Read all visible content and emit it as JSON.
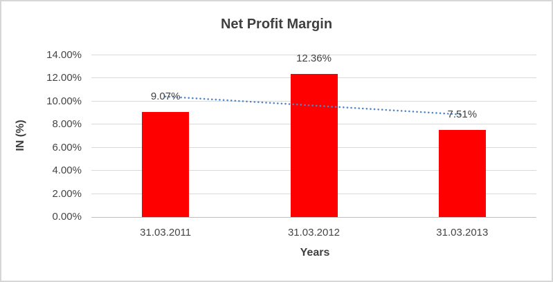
{
  "window": {
    "background": "#FFFFFF",
    "border_color": "#D6D6D6"
  },
  "chart_data": {
    "type": "bar",
    "title": "Net Profit Margin",
    "xlabel": "Years",
    "ylabel": "IN (%)",
    "categories": [
      "31.03.2011",
      "31.03.2012",
      "31.03.2013"
    ],
    "series": [
      {
        "name": "Net Profit Margin",
        "values": [
          9.07,
          12.36,
          7.51
        ],
        "data_labels": [
          "9.07%",
          "12.36%",
          "7.51%"
        ],
        "color": "#FF0000"
      }
    ],
    "ylim": [
      0,
      14
    ],
    "ytick_step": 2,
    "ytick_labels": [
      "0.00%",
      "2.00%",
      "4.00%",
      "6.00%",
      "8.00%",
      "10.00%",
      "12.00%",
      "14.00%"
    ],
    "grid": true,
    "legend": "none",
    "trendline": {
      "type": "linear",
      "style": "dotted",
      "color": "#4F86C6",
      "points": [
        {
          "x": "31.03.2011",
          "y": 10.43
        },
        {
          "x": "31.03.2013",
          "y": 8.87
        }
      ]
    },
    "text_color": "#404040",
    "gridline_color": "#D9D9D9",
    "axis_line_color": "#BFBFBF"
  }
}
